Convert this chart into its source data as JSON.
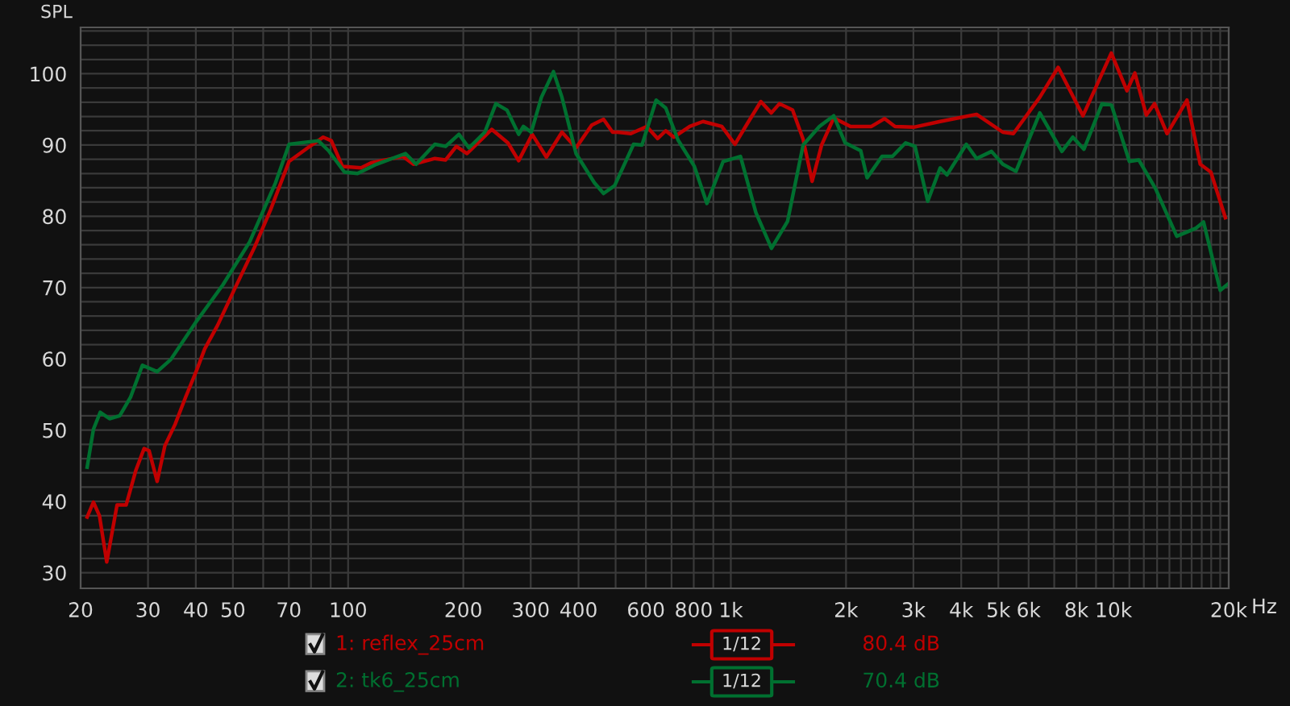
{
  "chart_data": {
    "type": "line",
    "ylabel": "SPL",
    "log": "x",
    "grid": true,
    "legend": "bottom",
    "line_style": "solid",
    "marker": "none",
    "xlim": [
      20,
      20000
    ],
    "ylim": [
      27.8,
      106.5
    ],
    "xticks": [
      20,
      30,
      40,
      50,
      {
        "value": 60,
        "label": null
      },
      70,
      {
        "value": 80,
        "label": null
      },
      {
        "value": 90,
        "label": null
      },
      100,
      200,
      300,
      400,
      {
        "value": 500,
        "label": null
      },
      600,
      {
        "value": 700,
        "label": null
      },
      800,
      {
        "value": 900,
        "label": null
      },
      {
        "value": 1000,
        "label": "1k"
      },
      {
        "value": 2000,
        "label": "2k"
      },
      {
        "value": 3000,
        "label": "3k"
      },
      {
        "value": 4000,
        "label": "4k"
      },
      {
        "value": 5000,
        "label": "5k"
      },
      {
        "value": 6000,
        "label": "6k"
      },
      {
        "value": 7000,
        "label": null
      },
      {
        "value": 8000,
        "label": "8k"
      },
      {
        "value": 9000,
        "label": null
      },
      {
        "value": 10000,
        "label": "10k"
      },
      {
        "value": 11000,
        "label": null
      },
      {
        "value": 12000,
        "label": null
      },
      {
        "value": 13000,
        "label": null
      },
      {
        "value": 14000,
        "label": null
      },
      {
        "value": 15000,
        "label": null
      },
      {
        "value": 16000,
        "label": null
      },
      {
        "value": 17000,
        "label": null
      },
      {
        "value": 18000,
        "label": null
      },
      {
        "value": 19000,
        "label": null
      },
      {
        "value": 20000,
        "label": "20k"
      }
    ],
    "xlabel": "Hz",
    "yticks": [
      30,
      {
        "value": 32,
        "label": null
      },
      {
        "value": 34,
        "label": null
      },
      {
        "value": 36,
        "label": null
      },
      {
        "value": 38,
        "label": null
      },
      40,
      {
        "value": 42,
        "label": null
      },
      {
        "value": 44,
        "label": null
      },
      {
        "value": 46,
        "label": null
      },
      {
        "value": 48,
        "label": null
      },
      50,
      {
        "value": 52,
        "label": null
      },
      {
        "value": 54,
        "label": null
      },
      {
        "value": 56,
        "label": null
      },
      {
        "value": 58,
        "label": null
      },
      60,
      {
        "value": 62,
        "label": null
      },
      {
        "value": 64,
        "label": null
      },
      {
        "value": 66,
        "label": null
      },
      {
        "value": 68,
        "label": null
      },
      70,
      {
        "value": 72,
        "label": null
      },
      {
        "value": 74,
        "label": null
      },
      {
        "value": 76,
        "label": null
      },
      {
        "value": 78,
        "label": null
      },
      80,
      {
        "value": 82,
        "label": null
      },
      {
        "value": 84,
        "label": null
      },
      {
        "value": 86,
        "label": null
      },
      {
        "value": 88,
        "label": null
      },
      90,
      {
        "value": 92,
        "label": null
      },
      {
        "value": 94,
        "label": null
      },
      {
        "value": 96,
        "label": null
      },
      {
        "value": 98,
        "label": null
      },
      100,
      {
        "value": 102,
        "label": null
      },
      {
        "value": 104,
        "label": null
      },
      {
        "value": 106,
        "label": null
      }
    ],
    "annotations": [
      "1/12",
      "80.4 dB",
      "1/12",
      "70.4 dB"
    ],
    "series": [
      {
        "name": "1: reflex_25cm",
        "color": "#c00000",
        "x": [
          20.8,
          21.6,
          22.4,
          23.4,
          24.9,
          26.3,
          27.9,
          29.3,
          30.2,
          31.7,
          33.2,
          35.3,
          37.6,
          40.2,
          42.2,
          45.6,
          50.3,
          57.0,
          62.7,
          70.1,
          78.4,
          86.1,
          90.4,
          96.6,
          108.1,
          114.9,
          138.9,
          148.1,
          168.5,
          179.8,
          191.8,
          204.6,
          218.5,
          237.3,
          261.5,
          279,
          302.6,
          329.7,
          362,
          394,
          433,
          465,
          491,
          506,
          548,
          603,
          644,
          676,
          710,
          781,
          846,
          947,
          1025,
          1107,
          1198,
          1276,
          1340,
          1450,
          1545,
          1631,
          1727,
          1857,
          2055,
          2330,
          2523,
          2686,
          3003,
          3524,
          4387,
          5137,
          5474,
          6418,
          7168,
          8320,
          9867,
          10841,
          11370,
          12180,
          12800,
          13800,
          15560,
          16850,
          17960,
          19600
        ],
        "values": [
          37.8,
          39.9,
          38.0,
          31.5,
          39.5,
          39.5,
          44.4,
          47.4,
          47.1,
          42.8,
          47.8,
          50.8,
          54.6,
          58.4,
          61.4,
          64.7,
          69.6,
          75.7,
          80.9,
          87.7,
          89.6,
          91.1,
          90.6,
          87.0,
          86.8,
          87.5,
          88.4,
          87.3,
          88.1,
          87.9,
          89.8,
          88.8,
          90.3,
          92.2,
          90.3,
          87.8,
          91.5,
          88.3,
          91.8,
          89.6,
          92.8,
          93.6,
          91.8,
          91.8,
          91.6,
          92.6,
          90.9,
          92.0,
          91.1,
          92.6,
          93.3,
          92.6,
          90.1,
          93.1,
          96.1,
          94.5,
          95.8,
          94.9,
          90.8,
          84.9,
          90.0,
          93.8,
          92.6,
          92.6,
          93.7,
          92.6,
          92.5,
          93.3,
          94.3,
          91.8,
          91.6,
          96.7,
          100.9,
          94.1,
          102.9,
          97.6,
          100.1,
          94.2,
          95.8,
          91.6,
          96.3,
          87.3,
          86.2,
          79.8
        ]
      },
      {
        "name": "2: tk6_25cm",
        "color": "#007030",
        "x": [
          20.8,
          21.6,
          22.5,
          23.8,
          25.3,
          27.0,
          29.0,
          31.7,
          34.4,
          40.2,
          47.1,
          55.3,
          64.6,
          70.1,
          83.6,
          88.9,
          97.8,
          105.8,
          118.6,
          141.2,
          150.5,
          168.5,
          179.8,
          194.8,
          206.9,
          227.6,
          243.3,
          260,
          279,
          287,
          301,
          320,
          344,
          362,
          394,
          440,
          465,
          497,
          557,
          586,
          638,
          676,
          728,
          803,
          866,
          955,
          1060,
          1163,
          1277,
          1407,
          1545,
          1703,
          1857,
          1989,
          2185,
          2270,
          2484,
          2645,
          2862,
          3030,
          3270,
          3524,
          3670,
          4125,
          4387,
          4800,
          5137,
          5560,
          6418,
          7330,
          7830,
          8370,
          9330,
          9880,
          11000,
          11640,
          12870,
          14630,
          16380,
          17190,
          19000,
          19920
        ],
        "values": [
          44.8,
          50.1,
          52.5,
          51.6,
          52.0,
          54.6,
          59.1,
          58.2,
          59.9,
          65.3,
          70.4,
          76.4,
          84.7,
          90.1,
          90.6,
          89.2,
          86.2,
          86.0,
          87.3,
          88.8,
          87.3,
          90.1,
          89.8,
          91.5,
          89.6,
          91.8,
          95.8,
          94.9,
          91.5,
          92.6,
          91.8,
          96.7,
          100.3,
          96.7,
          88.8,
          84.7,
          83.2,
          84.3,
          90.1,
          90.0,
          96.3,
          95.2,
          90.7,
          87.0,
          81.8,
          87.7,
          88.4,
          80.5,
          75.5,
          79.3,
          90.0,
          92.6,
          94.1,
          90.3,
          89.2,
          85.4,
          88.4,
          88.4,
          90.3,
          89.8,
          82.1,
          86.8,
          85.8,
          90.1,
          88.1,
          89.1,
          87.3,
          86.3,
          94.5,
          89.1,
          91.1,
          89.4,
          95.8,
          95.6,
          87.7,
          87.9,
          83.9,
          77.2,
          78.3,
          79.2,
          69.6,
          70.5
        ]
      }
    ]
  }
}
